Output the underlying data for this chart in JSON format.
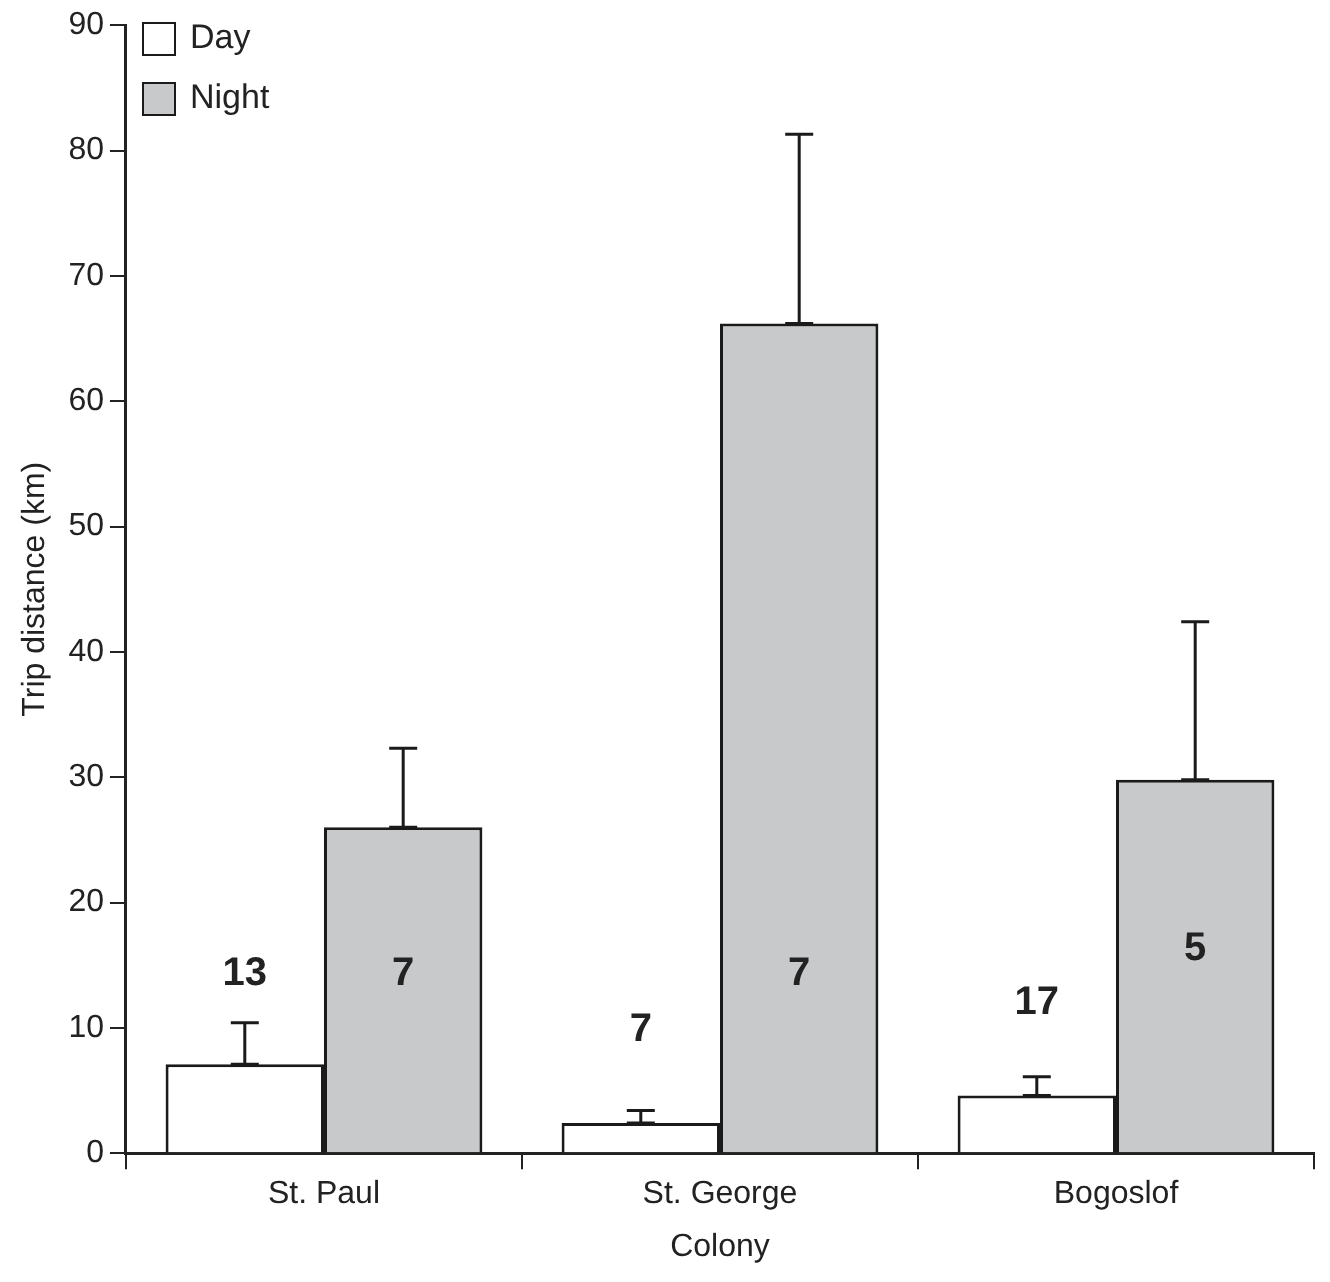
{
  "chart_data": {
    "type": "bar",
    "xlabel": "Colony",
    "ylabel": "Trip distance (km)",
    "categories": [
      "St. Paul",
      "St. George",
      "Bogoslof"
    ],
    "series": [
      {
        "name": "Day",
        "color": "#ffffff",
        "values": [
          7.1,
          2.4,
          4.6
        ],
        "errors": [
          [
            7.1,
            10.4
          ],
          [
            2.4,
            3.4
          ],
          [
            4.6,
            6.1
          ]
        ]
      },
      {
        "name": "Night",
        "color": "#c8c9cb",
        "values": [
          26.0,
          66.2,
          29.8
        ],
        "errors": [
          [
            26.0,
            32.3
          ],
          [
            66.2,
            81.3
          ],
          [
            29.8,
            42.4
          ]
        ]
      }
    ],
    "ylim": [
      0,
      90
    ],
    "yticks": [
      0,
      10,
      20,
      30,
      40,
      50,
      60,
      70,
      80,
      90
    ],
    "grid": false,
    "legend": "top left",
    "annotations": [
      {
        "text": "13",
        "x": "St. Paul",
        "y": 14.3
      },
      {
        "text": "7",
        "x": "St. Paul",
        "y": 14.3
      },
      {
        "text": "7",
        "x": "St. George",
        "y": 9.8
      },
      {
        "text": "7",
        "x": "St. George",
        "y": 14.3
      },
      {
        "text": "17",
        "x": "Bogoslof",
        "y": 12
      },
      {
        "text": "5",
        "x": "Bogoslof",
        "y": 16.3
      }
    ]
  }
}
